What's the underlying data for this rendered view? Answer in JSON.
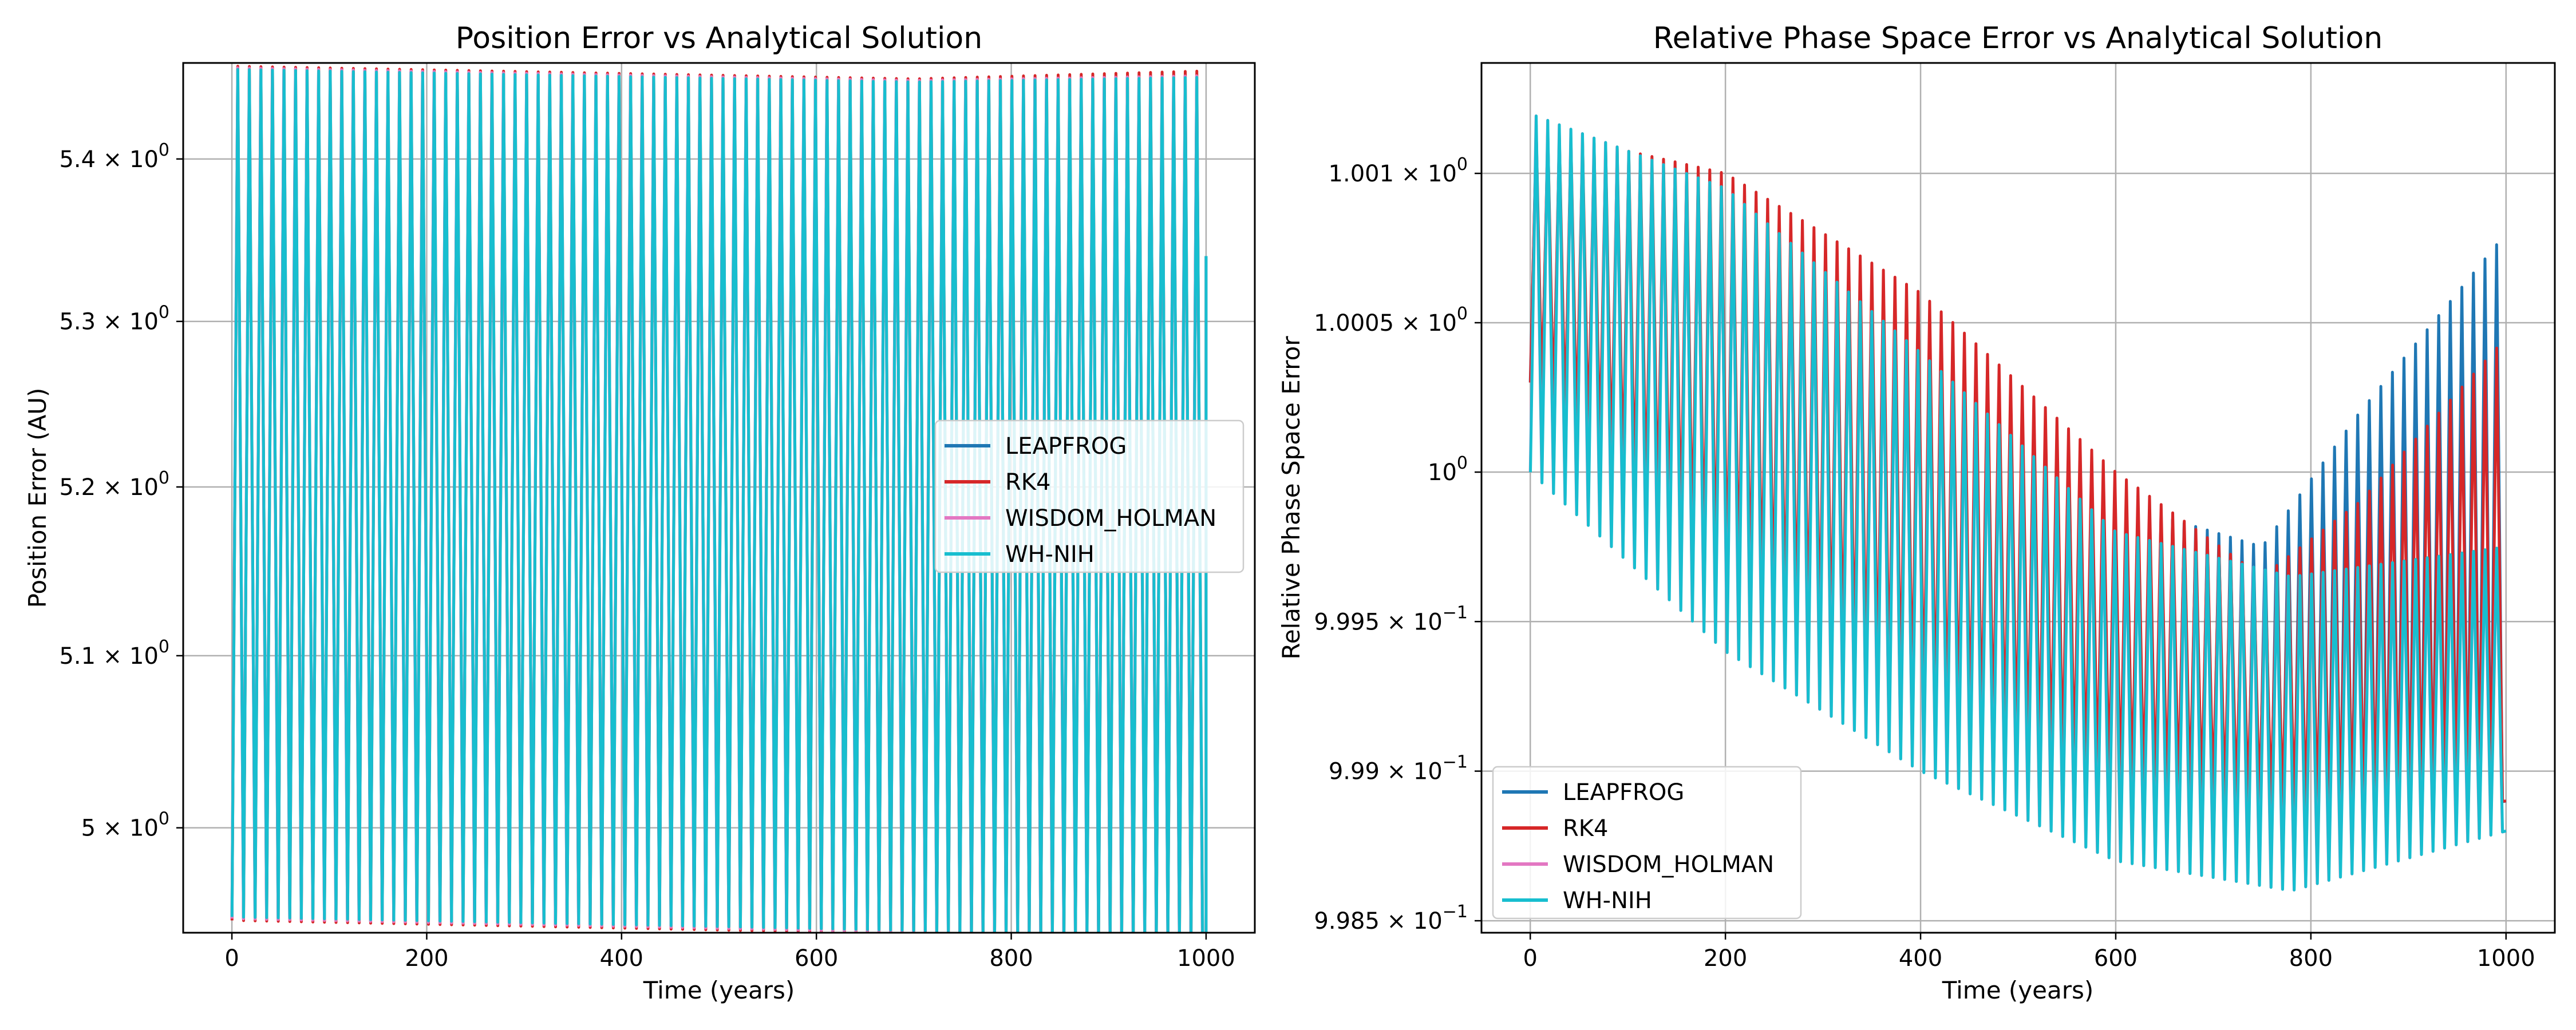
{
  "chart_data": [
    {
      "type": "line",
      "title": "Position Error vs Analytical Solution",
      "xlabel": "Time (years)",
      "ylabel": "Position Error (AU)",
      "xlim": [
        -50,
        1050
      ],
      "ylim": [
        4.94,
        5.46
      ],
      "yscale": "log",
      "grid": true,
      "legend_position": "center-right",
      "x_ticks": [
        {
          "value": 0,
          "label": "0"
        },
        {
          "value": 200,
          "label": "200"
        },
        {
          "value": 400,
          "label": "400"
        },
        {
          "value": 600,
          "label": "600"
        },
        {
          "value": 800,
          "label": "800"
        },
        {
          "value": 1000,
          "label": "1000"
        }
      ],
      "y_ticks": [
        {
          "value": 5.0,
          "mantissa": "5",
          "exponent": "0"
        },
        {
          "value": 5.1,
          "mantissa": "5.1",
          "exponent": "0"
        },
        {
          "value": 5.2,
          "mantissa": "5.2",
          "exponent": "0"
        },
        {
          "value": 5.3,
          "mantissa": "5.3",
          "exponent": "0"
        },
        {
          "value": 5.4,
          "mantissa": "5.4",
          "exponent": "0"
        }
      ],
      "oscillation": {
        "period_years": 11.86,
        "t_end": 1000,
        "t_start": 0
      },
      "series": [
        {
          "name": "LEAPFROG",
          "color": "#1f77b4",
          "max": [
            [
              0,
              5.457
            ],
            [
              700,
              5.449
            ],
            [
              1000,
              5.452
            ]
          ],
          "min": [
            [
              0,
              4.948
            ],
            [
              1000,
              4.937
            ]
          ],
          "end_value": 5.34
        },
        {
          "name": "RK4",
          "color": "#d62728",
          "max": [
            [
              0,
              5.458
            ],
            [
              700,
              5.45
            ],
            [
              1000,
              5.455
            ]
          ],
          "min": [
            [
              0,
              4.947
            ],
            [
              1000,
              4.936
            ]
          ],
          "end_value": 5.34
        },
        {
          "name": "WISDOM_HOLMAN",
          "color": "#e377c2",
          "max": [
            [
              0,
              5.457
            ],
            [
              700,
              5.449
            ],
            [
              1000,
              5.452
            ]
          ],
          "min": [
            [
              0,
              4.948
            ],
            [
              1000,
              4.937
            ]
          ],
          "end_value": 5.34
        },
        {
          "name": "WH-NIH",
          "color": "#17becf",
          "max": [
            [
              0,
              5.456
            ],
            [
              700,
              5.448
            ],
            [
              1000,
              5.451
            ]
          ],
          "min": [
            [
              0,
              4.949
            ],
            [
              1000,
              4.938
            ]
          ],
          "end_value": 5.34
        }
      ]
    },
    {
      "type": "line",
      "title": "Relative Phase Space Error vs Analytical Solution",
      "xlabel": "Time (years)",
      "ylabel": "Relative Phase Space Error",
      "xlim": [
        -50,
        1050
      ],
      "ylim": [
        0.99846,
        1.00137
      ],
      "yscale": "log",
      "grid": true,
      "legend_position": "lower-left",
      "x_ticks": [
        {
          "value": 0,
          "label": "0"
        },
        {
          "value": 200,
          "label": "200"
        },
        {
          "value": 400,
          "label": "400"
        },
        {
          "value": 600,
          "label": "600"
        },
        {
          "value": 800,
          "label": "800"
        },
        {
          "value": 1000,
          "label": "1000"
        }
      ],
      "y_ticks": [
        {
          "value": 0.9985,
          "mantissa": "9.985",
          "exponent": "−1"
        },
        {
          "value": 0.999,
          "mantissa": "9.99",
          "exponent": "−1"
        },
        {
          "value": 0.9995,
          "mantissa": "9.995",
          "exponent": "−1"
        },
        {
          "value": 1.0,
          "mantissa": "",
          "exponent": "0"
        },
        {
          "value": 1.0005,
          "mantissa": "1.0005",
          "exponent": "0"
        },
        {
          "value": 1.001,
          "mantissa": "1.001",
          "exponent": "0"
        }
      ],
      "oscillation": {
        "period_years": 11.86,
        "t_end": 1000,
        "t_start": 0
      },
      "series": [
        {
          "name": "LEAPFROG",
          "color": "#1f77b4",
          "max": [
            [
              0,
              1.0011
            ],
            [
              200,
              1.0009
            ],
            [
              400,
              1.0004
            ],
            [
              600,
              0.9999
            ],
            [
              750,
              0.99975
            ],
            [
              850,
              1.0002
            ],
            [
              1000,
              1.0008
            ]
          ],
          "min": [
            [
              0,
              1.0003
            ],
            [
              200,
              0.9995
            ],
            [
              400,
              0.99905
            ],
            [
              600,
              0.9988
            ],
            [
              800,
              0.99878
            ],
            [
              1000,
              0.9989
            ]
          ]
        },
        {
          "name": "RK4",
          "color": "#d62728",
          "max": [
            [
              0,
              1.00115
            ],
            [
              200,
              1.001
            ],
            [
              400,
              1.0006
            ],
            [
              600,
              1.0
            ],
            [
              750,
              0.99965
            ],
            [
              850,
              0.9999
            ],
            [
              1000,
              1.00045
            ]
          ],
          "min": [
            [
              0,
              1.0003
            ],
            [
              200,
              0.99965
            ],
            [
              400,
              0.9992
            ],
            [
              600,
              0.99895
            ],
            [
              800,
              0.99888
            ],
            [
              1000,
              0.9989
            ]
          ]
        },
        {
          "name": "WISDOM_HOLMAN",
          "color": "#e377c2",
          "max": [
            [
              0,
              1.0012
            ],
            [
              200,
              1.00095
            ],
            [
              400,
              1.0004
            ],
            [
              600,
              0.9998
            ],
            [
              780,
              0.99965
            ],
            [
              1000,
              0.99975
            ]
          ],
          "min": [
            [
              0,
              1.0
            ],
            [
              200,
              0.9994
            ],
            [
              400,
              0.999
            ],
            [
              600,
              0.9987
            ],
            [
              780,
              0.9986
            ],
            [
              1000,
              0.9988
            ]
          ]
        },
        {
          "name": "WH-NIH",
          "color": "#17becf",
          "max": [
            [
              0,
              1.0012
            ],
            [
              200,
              1.00095
            ],
            [
              400,
              1.0004
            ],
            [
              600,
              0.9998
            ],
            [
              780,
              0.99965
            ],
            [
              1000,
              0.99975
            ]
          ],
          "min": [
            [
              0,
              1.0
            ],
            [
              200,
              0.9994
            ],
            [
              400,
              0.999
            ],
            [
              600,
              0.9987
            ],
            [
              780,
              0.9986
            ],
            [
              1000,
              0.9988
            ]
          ]
        }
      ]
    }
  ]
}
